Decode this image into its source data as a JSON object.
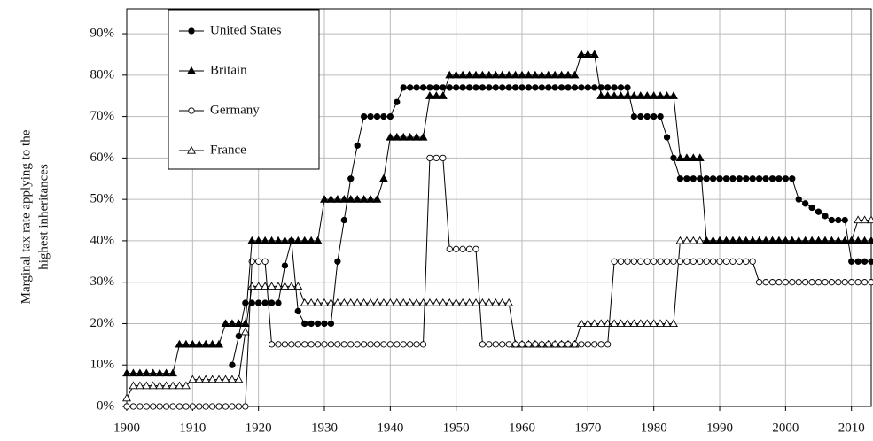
{
  "chart_data": {
    "type": "line",
    "ylabel": [
      "Marginal tax rate applying to the",
      "highest inheritances"
    ],
    "x": [
      1900,
      1901,
      1902,
      1903,
      1904,
      1905,
      1906,
      1907,
      1908,
      1909,
      1910,
      1911,
      1912,
      1913,
      1914,
      1915,
      1916,
      1917,
      1918,
      1919,
      1920,
      1921,
      1922,
      1923,
      1924,
      1925,
      1926,
      1927,
      1928,
      1929,
      1930,
      1931,
      1932,
      1933,
      1934,
      1935,
      1936,
      1937,
      1938,
      1939,
      1940,
      1941,
      1942,
      1943,
      1944,
      1945,
      1946,
      1947,
      1948,
      1949,
      1950,
      1951,
      1952,
      1953,
      1954,
      1955,
      1956,
      1957,
      1958,
      1959,
      1960,
      1961,
      1962,
      1963,
      1964,
      1965,
      1966,
      1967,
      1968,
      1969,
      1970,
      1971,
      1972,
      1973,
      1974,
      1975,
      1976,
      1977,
      1978,
      1979,
      1980,
      1981,
      1982,
      1983,
      1984,
      1985,
      1986,
      1987,
      1988,
      1989,
      1990,
      1991,
      1992,
      1993,
      1994,
      1995,
      1996,
      1997,
      1998,
      1999,
      2000,
      2001,
      2002,
      2003,
      2004,
      2005,
      2006,
      2007,
      2008,
      2009,
      2010,
      2011,
      2012,
      2013
    ],
    "series": [
      {
        "name": "United States",
        "color": "#000000",
        "marker": "circle",
        "filled": true,
        "values": [
          null,
          null,
          null,
          null,
          null,
          null,
          null,
          null,
          null,
          null,
          null,
          null,
          null,
          null,
          null,
          null,
          10,
          17,
          25,
          25,
          25,
          25,
          25,
          25,
          34,
          40,
          23,
          20,
          20,
          20,
          20,
          20,
          35,
          45,
          55,
          63,
          70,
          70,
          70,
          70,
          70,
          73.5,
          77,
          77,
          77,
          77,
          77,
          77,
          77,
          77,
          77,
          77,
          77,
          77,
          77,
          77,
          77,
          77,
          77,
          77,
          77,
          77,
          77,
          77,
          77,
          77,
          77,
          77,
          77,
          77,
          77,
          77,
          77,
          77,
          77,
          77,
          77,
          70,
          70,
          70,
          70,
          70,
          65,
          60,
          55,
          55,
          55,
          55,
          55,
          55,
          55,
          55,
          55,
          55,
          55,
          55,
          55,
          55,
          55,
          55,
          55,
          55,
          50,
          49,
          48,
          47,
          46,
          45,
          45,
          45,
          35,
          35,
          35,
          35
        ]
      },
      {
        "name": "Britain",
        "color": "#000000",
        "marker": "triangle",
        "filled": true,
        "values": [
          8,
          8,
          8,
          8,
          8,
          8,
          8,
          8,
          15,
          15,
          15,
          15,
          15,
          15,
          15,
          20,
          20,
          20,
          20,
          40,
          40,
          40,
          40,
          40,
          40,
          40,
          40,
          40,
          40,
          40,
          50,
          50,
          50,
          50,
          50,
          50,
          50,
          50,
          50,
          55,
          65,
          65,
          65,
          65,
          65,
          65,
          75,
          75,
          75,
          80,
          80,
          80,
          80,
          80,
          80,
          80,
          80,
          80,
          80,
          80,
          80,
          80,
          80,
          80,
          80,
          80,
          80,
          80,
          80,
          85,
          85,
          85,
          75,
          75,
          75,
          75,
          75,
          75,
          75,
          75,
          75,
          75,
          75,
          75,
          60,
          60,
          60,
          60,
          40,
          40,
          40,
          40,
          40,
          40,
          40,
          40,
          40,
          40,
          40,
          40,
          40,
          40,
          40,
          40,
          40,
          40,
          40,
          40,
          40,
          40,
          40,
          40,
          40,
          40
        ]
      },
      {
        "name": "Germany",
        "color": "#000000",
        "marker": "circle",
        "filled": false,
        "values": [
          0,
          0,
          0,
          0,
          0,
          0,
          0,
          0,
          0,
          0,
          0,
          0,
          0,
          0,
          0,
          0,
          0,
          0,
          0,
          35,
          35,
          35,
          15,
          15,
          15,
          15,
          15,
          15,
          15,
          15,
          15,
          15,
          15,
          15,
          15,
          15,
          15,
          15,
          15,
          15,
          15,
          15,
          15,
          15,
          15,
          15,
          60,
          60,
          60,
          38,
          38,
          38,
          38,
          38,
          15,
          15,
          15,
          15,
          15,
          15,
          15,
          15,
          15,
          15,
          15,
          15,
          15,
          15,
          15,
          15,
          15,
          15,
          15,
          15,
          35,
          35,
          35,
          35,
          35,
          35,
          35,
          35,
          35,
          35,
          35,
          35,
          35,
          35,
          35,
          35,
          35,
          35,
          35,
          35,
          35,
          35,
          30,
          30,
          30,
          30,
          30,
          30,
          30,
          30,
          30,
          30,
          30,
          30,
          30,
          30,
          30,
          30,
          30,
          30
        ]
      },
      {
        "name": "France",
        "color": "#000000",
        "marker": "triangle",
        "filled": false,
        "values": [
          2,
          5,
          5,
          5,
          5,
          5,
          5,
          5,
          5,
          5,
          6.5,
          6.5,
          6.5,
          6.5,
          6.5,
          6.5,
          6.5,
          6.5,
          18,
          29,
          29,
          29,
          29,
          29,
          29,
          29,
          29,
          25,
          25,
          25,
          25,
          25,
          25,
          25,
          25,
          25,
          25,
          25,
          25,
          25,
          25,
          25,
          25,
          25,
          25,
          25,
          25,
          25,
          25,
          25,
          25,
          25,
          25,
          25,
          25,
          25,
          25,
          25,
          25,
          15,
          15,
          15,
          15,
          15,
          15,
          15,
          15,
          15,
          15,
          20,
          20,
          20,
          20,
          20,
          20,
          20,
          20,
          20,
          20,
          20,
          20,
          20,
          20,
          20,
          40,
          40,
          40,
          40,
          40,
          40,
          40,
          40,
          40,
          40,
          40,
          40,
          40,
          40,
          40,
          40,
          40,
          40,
          40,
          40,
          40,
          40,
          40,
          40,
          40,
          40,
          40,
          45,
          45,
          45
        ]
      }
    ],
    "xlim": [
      1900,
      2013
    ],
    "ylim": [
      0,
      96
    ],
    "xticks": [
      1900,
      1910,
      1920,
      1930,
      1940,
      1950,
      1960,
      1970,
      1980,
      1990,
      2000,
      2010
    ],
    "yticks": [
      {
        "value": 0,
        "label": "0%"
      },
      {
        "value": 10,
        "label": "10%"
      },
      {
        "value": 20,
        "label": "20%"
      },
      {
        "value": 30,
        "label": "30%"
      },
      {
        "value": 40,
        "label": "40%"
      },
      {
        "value": 50,
        "label": "50%"
      },
      {
        "value": 60,
        "label": "60%"
      },
      {
        "value": 70,
        "label": "70%"
      },
      {
        "value": 80,
        "label": "80%"
      },
      {
        "value": 90,
        "label": "90%"
      }
    ],
    "grid": true,
    "legend": "upper left"
  }
}
